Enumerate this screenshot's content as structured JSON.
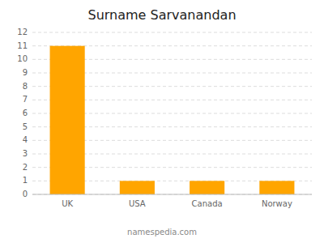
{
  "chart_data": {
    "type": "bar",
    "title": "Surname Sarvanandan",
    "categories": [
      "UK",
      "USA",
      "Canada",
      "Norway"
    ],
    "values": [
      11,
      1,
      1,
      1
    ],
    "color": "#FFA500",
    "ylim": [
      0,
      12
    ],
    "yticks": [
      0,
      1,
      2,
      3,
      4,
      5,
      6,
      7,
      8,
      9,
      10,
      11,
      12
    ],
    "grid": true,
    "annotations": [
      "namespedia.com"
    ]
  }
}
